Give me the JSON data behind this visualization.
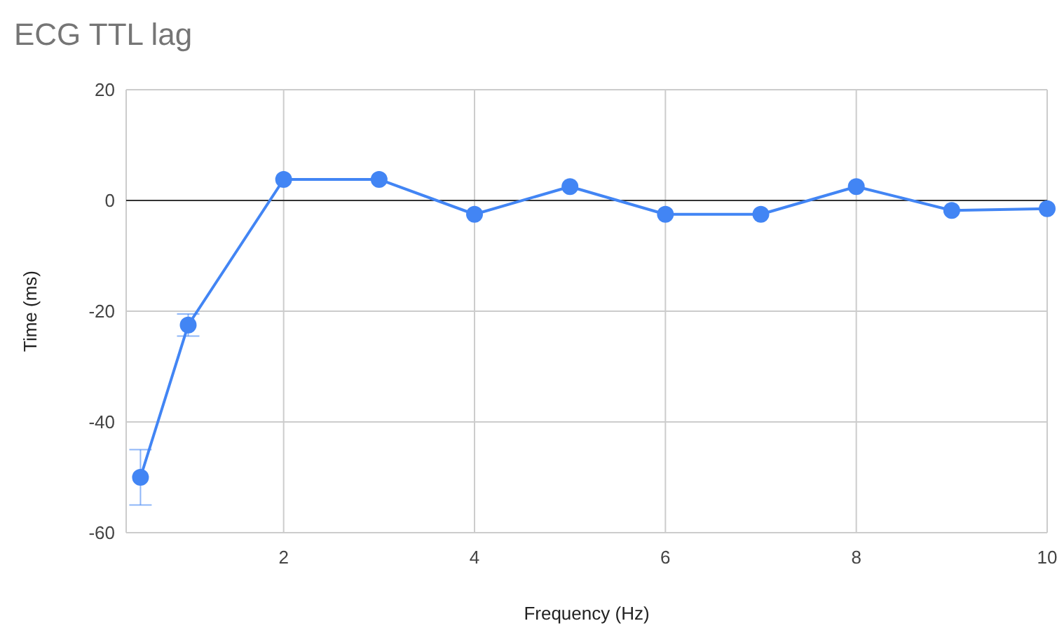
{
  "chart_data": {
    "type": "line",
    "title": "ECG TTL lag",
    "xlabel": "Frequency (Hz)",
    "ylabel": "Time (ms)",
    "x": [
      0.5,
      1,
      2,
      3,
      4,
      5,
      6,
      7,
      8,
      9,
      10
    ],
    "series": [
      {
        "color": "#4285f4",
        "values": [
          -50,
          -22.5,
          3.8,
          3.8,
          -2.5,
          2.5,
          -2.5,
          -2.5,
          2.5,
          -1.8,
          -1.5
        ],
        "errors": [
          [
            -55,
            -45
          ],
          [
            -24.5,
            -20.5
          ],
          null,
          null,
          null,
          null,
          null,
          null,
          null,
          null,
          null
        ]
      }
    ],
    "xlim": [
      0.35,
      10
    ],
    "xticks": [
      2,
      4,
      6,
      8,
      10
    ],
    "ylim": [
      -60,
      20
    ],
    "yticks": [
      -60,
      -40,
      -20,
      0,
      20
    ],
    "ref_lines": [
      {
        "axis": "y",
        "value": 0,
        "color": "#333333"
      }
    ],
    "grid": true,
    "marker": "circle",
    "line_style": "solid"
  }
}
